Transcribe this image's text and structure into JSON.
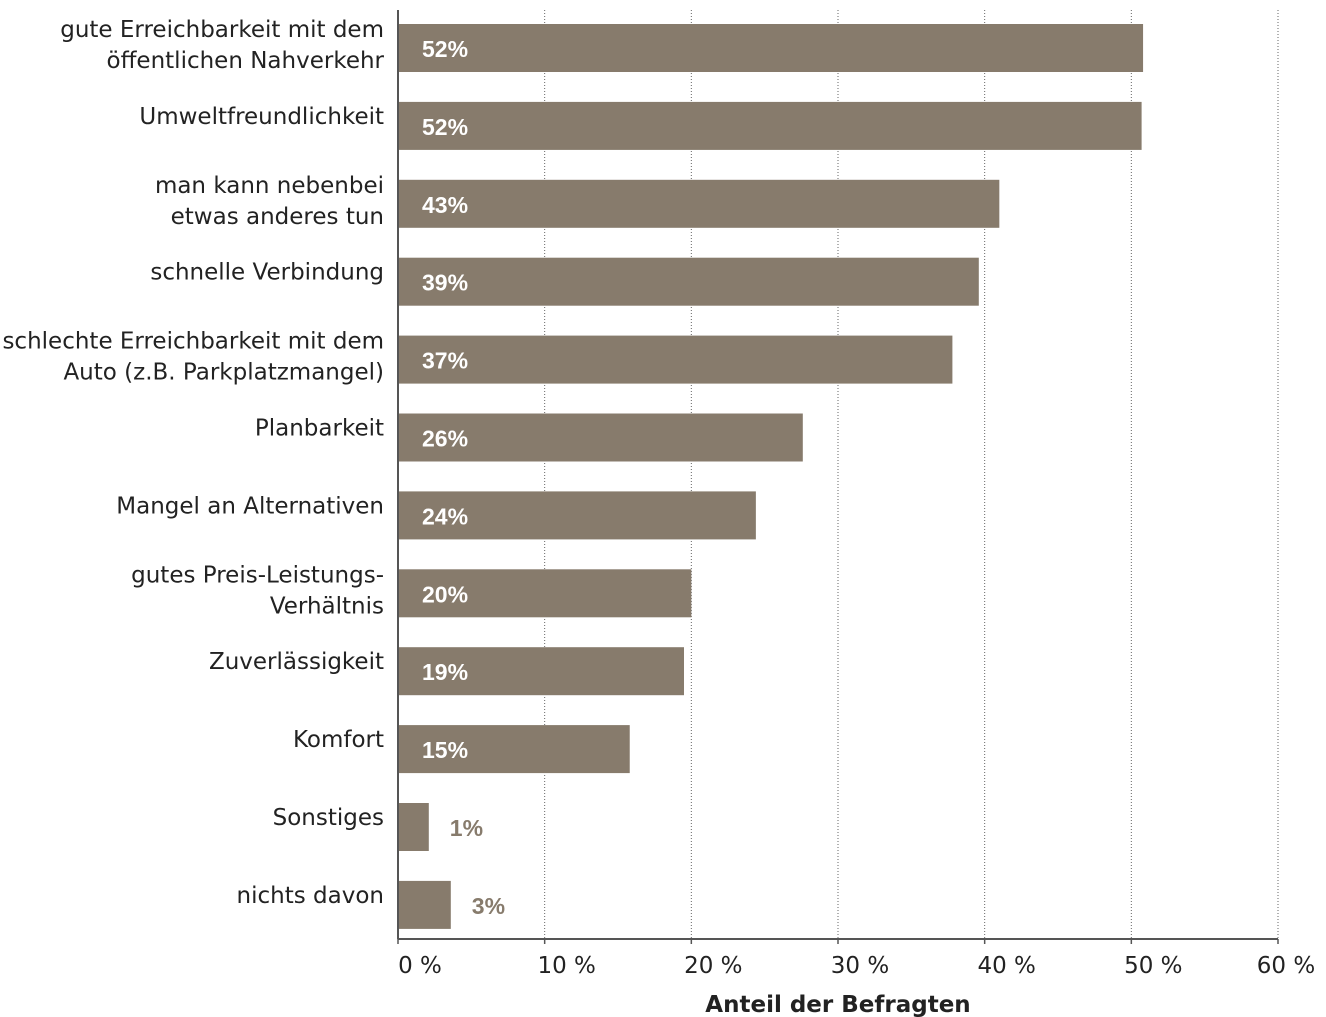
{
  "chart_data": {
    "type": "bar",
    "orientation": "horizontal",
    "categories": [
      "gute Erreichbarkeit mit dem\nöffentlichen Nahverkehr",
      "Umweltfreundlichkeit",
      "man kann nebenbei\netwas anderes tun",
      "schnelle Verbindung",
      "schlechte Erreichbarkeit mit dem\nAuto (z.B. Parkplatzmangel)",
      "Planbarkeit",
      "Mangel an Alternativen",
      "gutes Preis-Leistungs-\nVerhältnis",
      "Zuverlässigkeit",
      "Komfort",
      "Sonstiges",
      "nichts davon"
    ],
    "values": [
      52,
      52,
      43,
      39,
      37,
      26,
      24,
      20,
      19,
      15,
      1,
      3
    ],
    "bar_lengths": [
      50.8,
      50.7,
      41.0,
      39.6,
      37.8,
      27.6,
      24.4,
      20.0,
      19.5,
      15.8,
      2.1,
      3.6
    ],
    "value_labels": [
      "52%",
      "52%",
      "43%",
      "39%",
      "37%",
      "26%",
      "24%",
      "20%",
      "19%",
      "15%",
      "1%",
      "3%"
    ],
    "xlim": [
      0,
      60
    ],
    "xticks": [
      0,
      10,
      20,
      30,
      40,
      50,
      60
    ],
    "xtick_labels": [
      "0 %",
      "10 %",
      "20 %",
      "30 %",
      "40 %",
      "50 %",
      "60 %"
    ],
    "xlabel": "Anteil der Befragten",
    "ylabel": "",
    "title": "",
    "grid": "vertical dotted",
    "legend": "none",
    "colors": {
      "bar": "#877b6c",
      "label_outside": "#877b6c",
      "grid": "#666666",
      "axis": "#555555",
      "text": "#222222"
    }
  }
}
